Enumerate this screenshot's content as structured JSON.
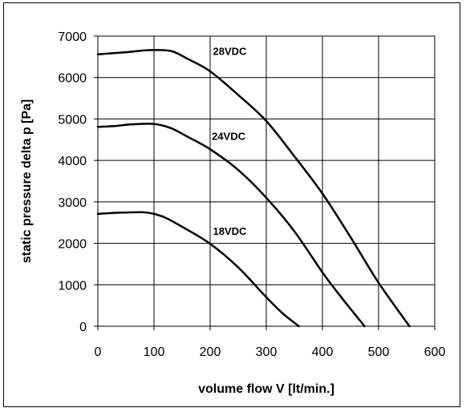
{
  "chart_data": {
    "type": "line",
    "xlabel": "volume flow V  [lt/min.]",
    "ylabel": "static pressure  delta p  [Pa]",
    "xlim": [
      0,
      600
    ],
    "ylim": [
      0,
      7000
    ],
    "x_ticks": [
      "0",
      "100",
      "200",
      "300",
      "400",
      "500",
      "600"
    ],
    "y_ticks": [
      "0",
      "1000",
      "2000",
      "3000",
      "4000",
      "5000",
      "6000",
      "7000"
    ],
    "grid": true,
    "series": [
      {
        "name": "28VDC",
        "x": [
          0,
          50,
          90,
          130,
          160,
          200,
          250,
          300,
          350,
          400,
          450,
          500,
          555
        ],
        "y": [
          6560,
          6610,
          6660,
          6640,
          6450,
          6150,
          5580,
          4950,
          4100,
          3200,
          2150,
          1050,
          0
        ]
      },
      {
        "name": "24VDC",
        "x": [
          0,
          30,
          60,
          100,
          130,
          160,
          200,
          250,
          300,
          350,
          400,
          430,
          475
        ],
        "y": [
          4810,
          4830,
          4870,
          4880,
          4780,
          4570,
          4270,
          3770,
          3100,
          2290,
          1300,
          760,
          0
        ]
      },
      {
        "name": "18VDC",
        "x": [
          0,
          40,
          80,
          100,
          120,
          150,
          200,
          250,
          300,
          330,
          358
        ],
        "y": [
          2710,
          2740,
          2750,
          2710,
          2620,
          2400,
          1990,
          1420,
          700,
          300,
          0
        ]
      }
    ],
    "series_label_values": [
      {
        "name": "28VDC",
        "x": 205,
        "y": 6550
      },
      {
        "name": "24VDC",
        "x": 203,
        "y": 4500
      },
      {
        "name": "18VDC",
        "x": 205,
        "y": 2200
      }
    ]
  }
}
